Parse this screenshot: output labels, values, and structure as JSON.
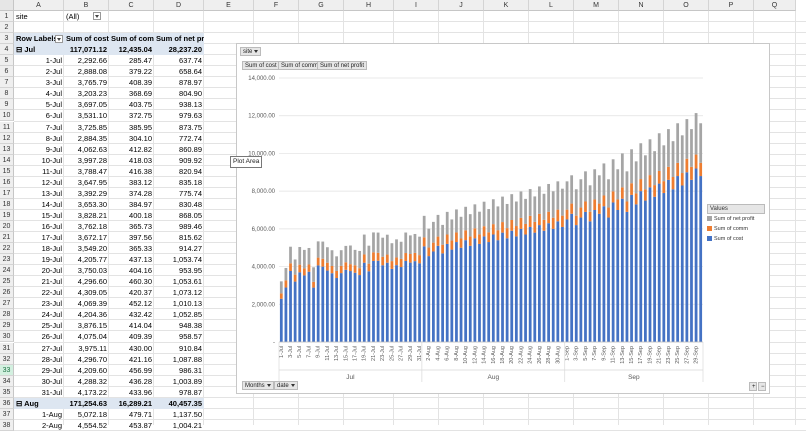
{
  "columns": [
    "A",
    "B",
    "C",
    "D",
    "E",
    "F",
    "G",
    "H",
    "I",
    "J",
    "K",
    "L",
    "M",
    "N",
    "O",
    "P",
    "Q"
  ],
  "filter": {
    "label": "site",
    "value": "(All)"
  },
  "pivot": {
    "headers": {
      "row_labels": "Row Labels",
      "cost": "Sum of cost",
      "comm": "Sum of comm",
      "profit": "Sum of net profit"
    },
    "groups": [
      {
        "label": "Jul",
        "cost": "117,071.12",
        "comm": "12,435.04",
        "profit": "28,237.20"
      },
      {
        "label": "Aug",
        "cost": "171,254.63",
        "comm": "16,289.21",
        "profit": "40,457.35"
      }
    ],
    "rows": [
      [
        "1-Jul",
        "2,292.66",
        "285.47",
        "637.74"
      ],
      [
        "2-Jul",
        "2,888.08",
        "379.22",
        "658.64"
      ],
      [
        "3-Jul",
        "3,765.79",
        "408.39",
        "878.97"
      ],
      [
        "4-Jul",
        "3,203.23",
        "368.69",
        "804.90"
      ],
      [
        "5-Jul",
        "3,697.05",
        "403.75",
        "938.13"
      ],
      [
        "6-Jul",
        "3,531.10",
        "372.75",
        "979.63"
      ],
      [
        "7-Jul",
        "3,725.85",
        "385.95",
        "873.75"
      ],
      [
        "8-Jul",
        "2,884.35",
        "304.10",
        "772.74"
      ],
      [
        "9-Jul",
        "4,062.63",
        "412.82",
        "860.89"
      ],
      [
        "10-Jul",
        "3,997.28",
        "418.03",
        "909.92"
      ],
      [
        "11-Jul",
        "3,788.47",
        "416.38",
        "820.94"
      ],
      [
        "12-Jul",
        "3,647.95",
        "383.12",
        "835.18"
      ],
      [
        "13-Jul",
        "3,392.29",
        "374.28",
        "775.74"
      ],
      [
        "14-Jul",
        "3,653.30",
        "384.97",
        "830.48"
      ],
      [
        "15-Jul",
        "3,828.21",
        "400.18",
        "868.05"
      ],
      [
        "16-Jul",
        "3,762.18",
        "365.73",
        "989.46"
      ],
      [
        "17-Jul",
        "3,672.17",
        "397.56",
        "815.62"
      ],
      [
        "18-Jul",
        "3,549.20",
        "365.33",
        "914.27"
      ],
      [
        "19-Jul",
        "4,205.77",
        "437.13",
        "1,053.74"
      ],
      [
        "20-Jul",
        "3,750.03",
        "404.16",
        "953.95"
      ],
      [
        "21-Jul",
        "4,296.60",
        "460.30",
        "1,053.61"
      ],
      [
        "22-Jul",
        "4,309.05",
        "420.37",
        "1,073.12"
      ],
      [
        "23-Jul",
        "4,069.39",
        "452.12",
        "1,010.13"
      ],
      [
        "24-Jul",
        "4,204.36",
        "432.42",
        "1,052.85"
      ],
      [
        "25-Jul",
        "3,876.15",
        "414.04",
        "948.38"
      ],
      [
        "26-Jul",
        "4,075.04",
        "409.39",
        "958.57"
      ],
      [
        "27-Jul",
        "3,975.11",
        "430.00",
        "910.84"
      ],
      [
        "28-Jul",
        "4,296.70",
        "421.16",
        "1,087.88"
      ],
      [
        "29-Jul",
        "4,209.60",
        "456.99",
        "986.31"
      ],
      [
        "30-Jul",
        "4,288.32",
        "436.28",
        "1,003.89"
      ],
      [
        "31-Jul",
        "4,173.22",
        "433.96",
        "978.87"
      ]
    ],
    "aug_rows": [
      [
        "1-Aug",
        "5,072.18",
        "479.71",
        "1,137.50"
      ],
      [
        "2-Aug",
        "4,554.52",
        "453.87",
        "1,004.21"
      ]
    ]
  },
  "chart": {
    "filter_button": "site",
    "value_buttons": [
      "Sum of cost",
      "Sum of comm",
      "Sum of net profit"
    ],
    "axis_buttons": [
      "Months",
      "date"
    ],
    "tooltip": "Plot Area",
    "legend_title": "Values",
    "legend": [
      {
        "name": "Sum of net profit",
        "color": "#a5a5a5"
      },
      {
        "name": "Sum of comm",
        "color": "#ed7d31"
      },
      {
        "name": "Sum of cost",
        "color": "#4472c4"
      }
    ],
    "y_ticks": [
      "-",
      "2,000.00",
      "4,000.00",
      "6,000.00",
      "8,000.00",
      "10,000.00",
      "12,000.00",
      "14,000.00"
    ],
    "month_labels": [
      "Jul",
      "Aug",
      "Sep"
    ]
  },
  "chart_data": {
    "type": "bar",
    "stacked": true,
    "ylim": [
      0,
      14000
    ],
    "series_names": [
      "Sum of cost",
      "Sum of comm",
      "Sum of net profit"
    ],
    "x_tick_labels": [
      "1-Jul",
      "3-Jul",
      "5-Jul",
      "7-Jul",
      "9-Jul",
      "11-Jul",
      "13-Jul",
      "15-Jul",
      "17-Jul",
      "19-Jul",
      "21-Jul",
      "23-Jul",
      "25-Jul",
      "27-Jul",
      "29-Jul",
      "31-Jul",
      "2-Aug",
      "4-Aug",
      "6-Aug",
      "8-Aug",
      "10-Aug",
      "12-Aug",
      "14-Aug",
      "16-Aug",
      "18-Aug",
      "20-Aug",
      "22-Aug",
      "24-Aug",
      "26-Aug",
      "28-Aug",
      "30-Aug",
      "1-Sep",
      "3-Sep",
      "5-Sep",
      "7-Sep",
      "9-Sep",
      "11-Sep",
      "13-Sep",
      "15-Sep",
      "17-Sep",
      "19-Sep",
      "21-Sep",
      "23-Sep",
      "25-Sep",
      "27-Sep",
      "29-Sep"
    ],
    "sep_estimates": [
      [
        6500,
        520,
        1500
      ],
      [
        6800,
        540,
        1500
      ],
      [
        6200,
        500,
        1400
      ],
      [
        6600,
        530,
        1500
      ],
      [
        6900,
        550,
        1600
      ],
      [
        6400,
        510,
        1400
      ],
      [
        7000,
        560,
        1600
      ],
      [
        6800,
        540,
        1500
      ],
      [
        7200,
        570,
        1700
      ],
      [
        6600,
        530,
        1500
      ],
      [
        7400,
        590,
        1700
      ],
      [
        7000,
        560,
        1600
      ],
      [
        7600,
        600,
        1800
      ],
      [
        6900,
        550,
        1600
      ],
      [
        7800,
        620,
        1800
      ],
      [
        7300,
        580,
        1700
      ],
      [
        8000,
        640,
        1900
      ],
      [
        7500,
        600,
        1800
      ],
      [
        8200,
        650,
        1900
      ],
      [
        7700,
        620,
        1800
      ],
      [
        8400,
        670,
        2000
      ],
      [
        7900,
        630,
        1900
      ],
      [
        8600,
        690,
        2000
      ],
      [
        8100,
        650,
        1900
      ],
      [
        8800,
        700,
        2100
      ],
      [
        8300,
        660,
        2000
      ],
      [
        9000,
        720,
        2100
      ],
      [
        8600,
        690,
        2000
      ],
      [
        9200,
        740,
        2200
      ],
      [
        8800,
        700,
        2100
      ]
    ],
    "aug_estimates": [
      [
        5072,
        480,
        1138
      ],
      [
        4555,
        454,
        1004
      ],
      [
        4800,
        470,
        1100
      ],
      [
        5100,
        490,
        1150
      ],
      [
        4700,
        460,
        1050
      ],
      [
        5200,
        500,
        1200
      ],
      [
        4900,
        480,
        1120
      ],
      [
        5300,
        510,
        1220
      ],
      [
        5000,
        490,
        1150
      ],
      [
        5400,
        520,
        1250
      ],
      [
        5100,
        500,
        1180
      ],
      [
        5500,
        530,
        1270
      ],
      [
        5200,
        510,
        1200
      ],
      [
        5600,
        540,
        1300
      ],
      [
        5300,
        520,
        1230
      ],
      [
        5700,
        550,
        1320
      ],
      [
        5400,
        530,
        1260
      ],
      [
        5800,
        560,
        1350
      ],
      [
        5500,
        540,
        1280
      ],
      [
        5900,
        570,
        1370
      ],
      [
        5600,
        550,
        1300
      ],
      [
        6000,
        580,
        1400
      ],
      [
        5700,
        560,
        1330
      ],
      [
        6100,
        590,
        1420
      ],
      [
        5800,
        570,
        1350
      ],
      [
        6200,
        600,
        1450
      ],
      [
        5900,
        580,
        1380
      ],
      [
        6300,
        610,
        1470
      ],
      [
        6000,
        590,
        1400
      ],
      [
        6400,
        620,
        1500
      ],
      [
        6100,
        600,
        1430
      ]
    ]
  }
}
